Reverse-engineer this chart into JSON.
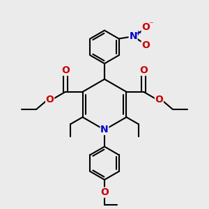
{
  "bg_color": "#ebebeb",
  "bond_color": "#000000",
  "nitrogen_color": "#0000cc",
  "oxygen_color": "#cc0000",
  "lw": 1.5,
  "figsize": [
    3.0,
    3.0
  ],
  "dpi": 100,
  "xlim": [
    -4.5,
    4.5
  ],
  "ylim": [
    -4.5,
    4.5
  ]
}
